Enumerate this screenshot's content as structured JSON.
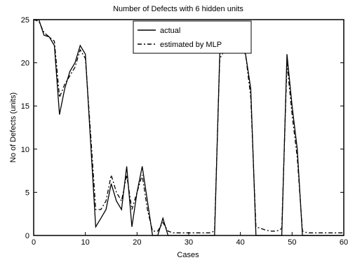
{
  "chart_data": {
    "type": "line",
    "title": "Number of Defects with 6 hidden units",
    "xlabel": "Cases",
    "ylabel": "No of Defects (units)",
    "xlim": [
      0,
      60
    ],
    "ylim": [
      0,
      25
    ],
    "xticks": [
      0,
      10,
      20,
      30,
      40,
      50,
      60
    ],
    "yticks": [
      0,
      5,
      10,
      15,
      20,
      25
    ],
    "grid": false,
    "legend_position": "top-center",
    "series": [
      {
        "name": "actual",
        "style": "solid",
        "color": "#000000",
        "points": [
          [
            0,
            25
          ],
          [
            1,
            25
          ],
          [
            2,
            23.2
          ],
          [
            3,
            23
          ],
          [
            4,
            22
          ],
          [
            5,
            14
          ],
          [
            6,
            17
          ],
          [
            7,
            19
          ],
          [
            8,
            20
          ],
          [
            9,
            22
          ],
          [
            10,
            21
          ],
          [
            11,
            11
          ],
          [
            12,
            1
          ],
          [
            13,
            2
          ],
          [
            14,
            3
          ],
          [
            15,
            6
          ],
          [
            16,
            4
          ],
          [
            17,
            3
          ],
          [
            18,
            8
          ],
          [
            19,
            1
          ],
          [
            20,
            5
          ],
          [
            21,
            8
          ],
          [
            22,
            4
          ],
          [
            23,
            0
          ],
          [
            24,
            0
          ],
          [
            25,
            2
          ],
          [
            26,
            0
          ],
          [
            27,
            0
          ],
          [
            28,
            0
          ],
          [
            29,
            0
          ],
          [
            30,
            0
          ],
          [
            31,
            0
          ],
          [
            32,
            0
          ],
          [
            33,
            0
          ],
          [
            34,
            0
          ],
          [
            35,
            0
          ],
          [
            36,
            21
          ],
          [
            37,
            22
          ],
          [
            38,
            22
          ],
          [
            39,
            22
          ],
          [
            40,
            22
          ],
          [
            41,
            21
          ],
          [
            42,
            17
          ],
          [
            43,
            0
          ],
          [
            44,
            0
          ],
          [
            45,
            0
          ],
          [
            46,
            0
          ],
          [
            47,
            0
          ],
          [
            48,
            0
          ],
          [
            49,
            21
          ],
          [
            50,
            15
          ],
          [
            51,
            10
          ],
          [
            52,
            0
          ],
          [
            53,
            0
          ],
          [
            54,
            0
          ],
          [
            55,
            0
          ],
          [
            56,
            0
          ],
          [
            57,
            0
          ],
          [
            58,
            0
          ],
          [
            59,
            0
          ],
          [
            60,
            0
          ]
        ]
      },
      {
        "name": "estimated by MLP",
        "style": "dashdot",
        "color": "#000000",
        "points": [
          [
            0,
            25
          ],
          [
            1,
            24.8
          ],
          [
            2,
            23.5
          ],
          [
            3,
            23
          ],
          [
            4,
            22.5
          ],
          [
            5,
            16
          ],
          [
            6,
            17.5
          ],
          [
            7,
            18.5
          ],
          [
            8,
            19.5
          ],
          [
            9,
            21.5
          ],
          [
            10,
            20.5
          ],
          [
            11,
            12
          ],
          [
            12,
            3
          ],
          [
            13,
            3
          ],
          [
            14,
            4
          ],
          [
            15,
            7
          ],
          [
            16,
            5
          ],
          [
            17,
            4
          ],
          [
            18,
            7
          ],
          [
            19,
            3
          ],
          [
            20,
            5
          ],
          [
            21,
            7
          ],
          [
            22,
            3
          ],
          [
            23,
            0.5
          ],
          [
            24,
            0.5
          ],
          [
            25,
            1.5
          ],
          [
            26,
            0.5
          ],
          [
            27,
            0.3
          ],
          [
            28,
            0.3
          ],
          [
            29,
            0.3
          ],
          [
            30,
            0.3
          ],
          [
            31,
            0.3
          ],
          [
            32,
            0.3
          ],
          [
            33,
            0.3
          ],
          [
            34,
            0.3
          ],
          [
            35,
            0.5
          ],
          [
            36,
            20.5
          ],
          [
            37,
            21.5
          ],
          [
            38,
            21.5
          ],
          [
            39,
            21.5
          ],
          [
            40,
            21.5
          ],
          [
            41,
            21
          ],
          [
            42,
            16
          ],
          [
            43,
            1
          ],
          [
            44,
            0.8
          ],
          [
            45,
            0.6
          ],
          [
            46,
            0.5
          ],
          [
            47,
            0.5
          ],
          [
            48,
            0.8
          ],
          [
            49,
            20
          ],
          [
            50,
            14
          ],
          [
            51,
            9
          ],
          [
            52,
            0.5
          ],
          [
            53,
            0.3
          ],
          [
            54,
            0.3
          ],
          [
            55,
            0.3
          ],
          [
            56,
            0.3
          ],
          [
            57,
            0.3
          ],
          [
            58,
            0.3
          ],
          [
            59,
            0.3
          ],
          [
            60,
            0.3
          ]
        ]
      }
    ]
  }
}
